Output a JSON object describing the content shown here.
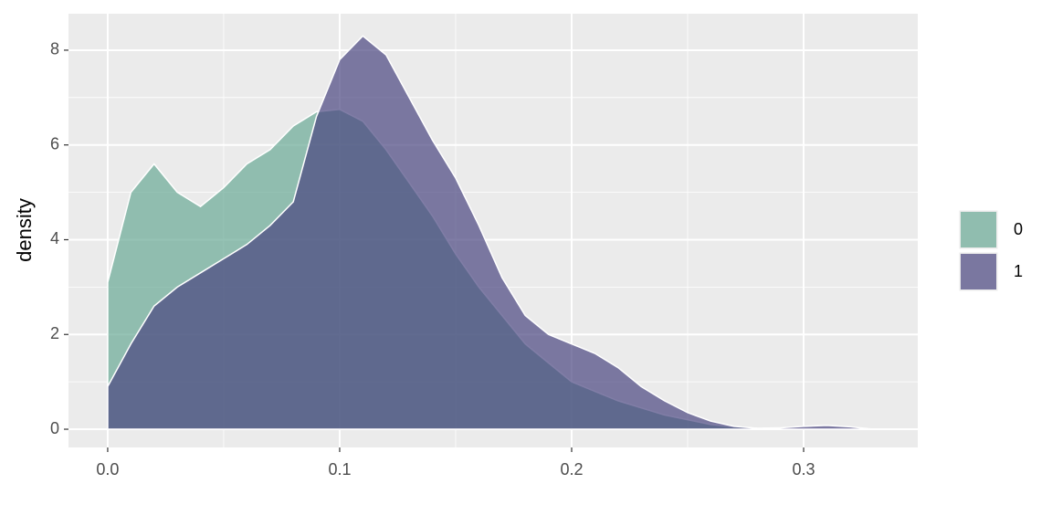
{
  "chart_data": {
    "type": "area",
    "y_label": "density",
    "x": [
      0,
      0.01,
      0.02,
      0.03,
      0.04,
      0.05,
      0.06,
      0.07,
      0.08,
      0.09,
      0.1,
      0.11,
      0.12,
      0.13,
      0.14,
      0.15,
      0.16,
      0.17,
      0.18,
      0.19,
      0.2,
      0.21,
      0.22,
      0.23,
      0.24,
      0.25,
      0.26,
      0.27,
      0.28,
      0.29,
      0.3,
      0.31,
      0.32,
      0.33
    ],
    "series": [
      {
        "name": "0",
        "color": "#6aaa96",
        "values": [
          3.1,
          5.0,
          5.6,
          5.0,
          4.7,
          5.1,
          5.6,
          5.9,
          6.4,
          6.7,
          6.75,
          6.5,
          5.9,
          5.2,
          4.5,
          3.7,
          3.0,
          2.4,
          1.8,
          1.4,
          1.0,
          0.8,
          0.6,
          0.45,
          0.3,
          0.2,
          0.1,
          0.05,
          0.02,
          0.01,
          0.01,
          0.01,
          0,
          0
        ]
      },
      {
        "name": "1",
        "color": "#4a4680",
        "values": [
          0.9,
          1.8,
          2.6,
          3.0,
          3.3,
          3.6,
          3.9,
          4.3,
          4.8,
          6.6,
          7.8,
          8.3,
          7.9,
          7.0,
          6.1,
          5.3,
          4.3,
          3.2,
          2.4,
          2.0,
          1.8,
          1.6,
          1.3,
          0.9,
          0.6,
          0.35,
          0.17,
          0.06,
          0.02,
          0.03,
          0.06,
          0.08,
          0.05,
          0
        ]
      }
    ],
    "xlim": [
      -0.0169,
      0.3492
    ],
    "ylim": [
      -0.385,
      8.77
    ],
    "xticks": [
      {
        "value": 0,
        "label": "0.0"
      },
      0.1,
      0.2,
      0.3
    ],
    "yticks": [
      0,
      2,
      4,
      6,
      8
    ],
    "grid": true,
    "minor_grid": true,
    "fill_opacity": 0.7,
    "legend": "right"
  }
}
